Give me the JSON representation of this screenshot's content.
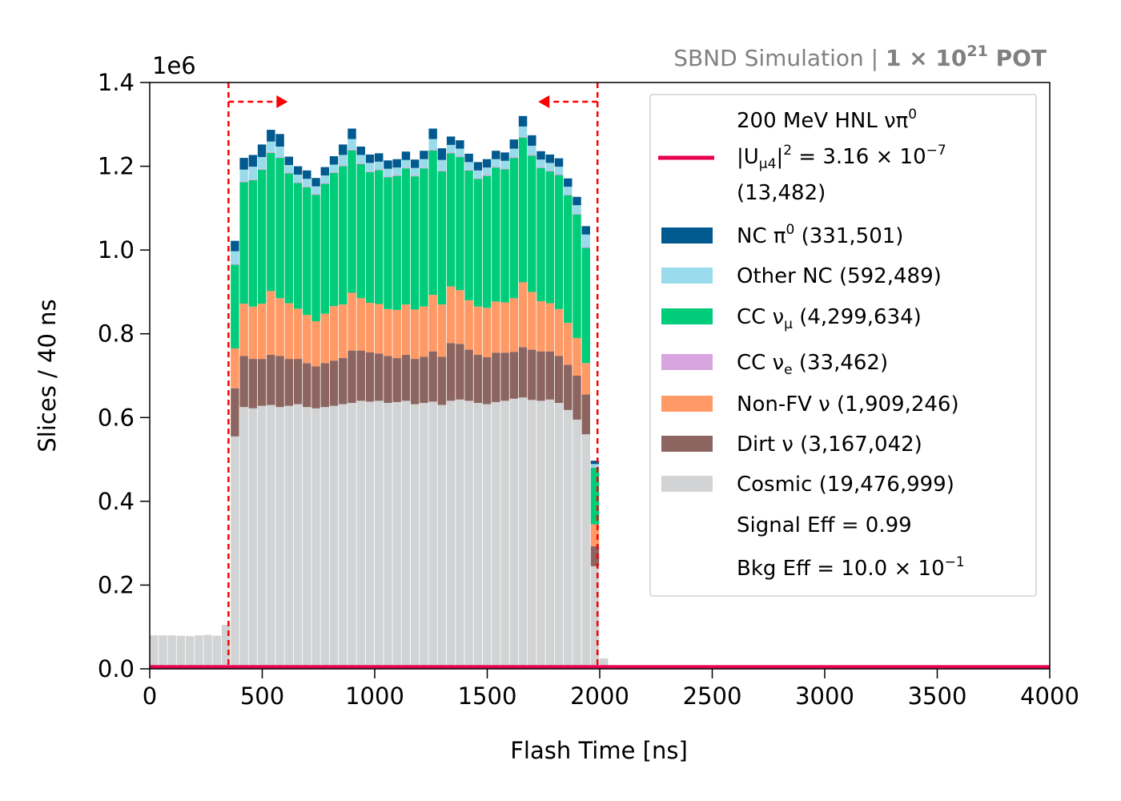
{
  "chart_data": {
    "type": "bar",
    "stacked": true,
    "header_left": "SBND Simulation | ",
    "header_bold": "1 × 10",
    "header_sup": "21",
    "header_suffix": " POT",
    "xlabel": "Flash Time [ns]",
    "ylabel": "Slices / 40 ns",
    "y_offset_text": "1e6",
    "xlim": [
      0,
      4000
    ],
    "ylim": [
      0,
      1400000
    ],
    "x_ticks": [
      0,
      500,
      1000,
      1500,
      2000,
      2500,
      3000,
      3500,
      4000
    ],
    "y_ticks": [
      0.0,
      0.2,
      0.4,
      0.6,
      0.8,
      1.0,
      1.2,
      1.4
    ],
    "y_tick_labels": [
      "0.0",
      "0.2",
      "0.4",
      "0.6",
      "0.8",
      "1.0",
      "1.2",
      "1.4"
    ],
    "x_tick_labels": [
      "0",
      "500",
      "1000",
      "1500",
      "2000",
      "2500",
      "3000",
      "3500",
      "4000"
    ],
    "bin_width": 40,
    "bin_start": 0,
    "grid": false,
    "legend_placement": "upper right",
    "cut_lines": [
      350,
      1990
    ],
    "cut_line_color": "#ff0000",
    "signal_line_color": "#e8004c",
    "signal_level": 5000,
    "legend": {
      "signal_line1": "200 MeV HNL νπ",
      "signal_line1_sup": "0",
      "signal_line2_pre": "|U",
      "signal_line2_sub": "μ4",
      "signal_line2_mid": "|",
      "signal_line2_sup": "2",
      "signal_line2_post": " = 3.16 × 10",
      "signal_line2_exp": "−7",
      "signal_line3": "(13,482)",
      "eff_signal": "Signal Eff = 0.99",
      "eff_bkg_pre": "Bkg Eff = 10.0 × 10",
      "eff_bkg_exp": "−1"
    },
    "series": [
      {
        "name": "Cosmic (19,476,999)",
        "color": "#d2d3d4",
        "values": [
          80000,
          80000,
          80000,
          79000,
          78000,
          80000,
          81000,
          79000,
          105000,
          555000,
          625000,
          622000,
          628000,
          630000,
          625000,
          628000,
          632000,
          625000,
          622000,
          625000,
          628000,
          632000,
          635000,
          640000,
          638000,
          640000,
          635000,
          637000,
          640000,
          632000,
          635000,
          638000,
          630000,
          640000,
          643000,
          640000,
          635000,
          632000,
          637000,
          640000,
          645000,
          648000,
          642000,
          640000,
          643000,
          635000,
          618000,
          595000,
          560000,
          245000,
          25000,
          0,
          0,
          0,
          0,
          0,
          0,
          0,
          0,
          0,
          0,
          0,
          0,
          0,
          0,
          0,
          0,
          0,
          0,
          0,
          0,
          0,
          0,
          0,
          0,
          0,
          0,
          0,
          0,
          0,
          0,
          0,
          0,
          0,
          0,
          0,
          0,
          0,
          0,
          0,
          0,
          0,
          0,
          0,
          0,
          0,
          0,
          0,
          0,
          0
        ]
      },
      {
        "name": "Dirt ν (3,167,042)",
        "color": "#8c6560",
        "values": [
          0,
          0,
          0,
          0,
          0,
          0,
          0,
          0,
          0,
          115000,
          122000,
          118000,
          112000,
          120000,
          122000,
          112000,
          108000,
          105000,
          100000,
          105000,
          108000,
          110000,
          125000,
          120000,
          118000,
          113000,
          112000,
          105000,
          110000,
          108000,
          110000,
          120000,
          115000,
          138000,
          133000,
          122000,
          115000,
          112000,
          118000,
          115000,
          112000,
          120000,
          120000,
          118000,
          115000,
          112000,
          108000,
          105000,
          95000,
          48000,
          0,
          0,
          0,
          0,
          0,
          0,
          0,
          0,
          0,
          0,
          0,
          0,
          0,
          0,
          0,
          0,
          0,
          0,
          0,
          0,
          0,
          0,
          0,
          0,
          0,
          0,
          0,
          0,
          0,
          0,
          0,
          0,
          0,
          0,
          0,
          0,
          0,
          0,
          0,
          0,
          0,
          0,
          0,
          0,
          0,
          0,
          0,
          0,
          0,
          0
        ]
      },
      {
        "name": "Non-FV ν (1,909,246)",
        "color": "#ff9966",
        "values": [
          0,
          0,
          0,
          0,
          0,
          0,
          0,
          0,
          0,
          95000,
          125000,
          125000,
          132000,
          152000,
          138000,
          133000,
          120000,
          115000,
          108000,
          118000,
          130000,
          128000,
          138000,
          125000,
          118000,
          118000,
          112000,
          115000,
          120000,
          118000,
          120000,
          135000,
          125000,
          135000,
          128000,
          118000,
          115000,
          118000,
          122000,
          120000,
          128000,
          155000,
          138000,
          120000,
          115000,
          112000,
          100000,
          90000,
          75000,
          52000,
          0,
          0,
          0,
          0,
          0,
          0,
          0,
          0,
          0,
          0,
          0,
          0,
          0,
          0,
          0,
          0,
          0,
          0,
          0,
          0,
          0,
          0,
          0,
          0,
          0,
          0,
          0,
          0,
          0,
          0,
          0,
          0,
          0,
          0,
          0,
          0,
          0,
          0,
          0,
          0,
          0,
          0,
          0,
          0,
          0,
          0,
          0,
          0,
          0,
          0
        ]
      },
      {
        "name": "CC νμ (4,299,634)",
        "color": "#00cc7a",
        "values": [
          0,
          0,
          0,
          0,
          0,
          0,
          0,
          0,
          0,
          200000,
          290000,
          302000,
          320000,
          330000,
          335000,
          310000,
          300000,
          305000,
          302000,
          310000,
          318000,
          330000,
          340000,
          320000,
          312000,
          320000,
          315000,
          320000,
          325000,
          318000,
          330000,
          345000,
          318000,
          318000,
          318000,
          310000,
          305000,
          315000,
          320000,
          318000,
          335000,
          345000,
          325000,
          318000,
          315000,
          320000,
          305000,
          295000,
          275000,
          135000,
          0,
          0,
          0,
          0,
          0,
          0,
          0,
          0,
          0,
          0,
          0,
          0,
          0,
          0,
          0,
          0,
          0,
          0,
          0,
          0,
          0,
          0,
          0,
          0,
          0,
          0,
          0,
          0,
          0,
          0,
          0,
          0,
          0,
          0,
          0,
          0,
          0,
          0,
          0,
          0,
          0,
          0,
          0,
          0,
          0,
          0,
          0,
          0,
          0,
          0
        ]
      },
      {
        "name": "CC νe (33,462)",
        "color": "#d9a5e0",
        "values": [
          0,
          0,
          0,
          0,
          0,
          0,
          0,
          0,
          0,
          2000,
          2000,
          2000,
          2000,
          2000,
          2000,
          2000,
          2000,
          2000,
          2000,
          2000,
          2000,
          2000,
          2000,
          2000,
          2000,
          2000,
          2000,
          2000,
          2000,
          2000,
          2000,
          2000,
          2000,
          2000,
          2000,
          2000,
          2000,
          2000,
          2000,
          2000,
          2000,
          2000,
          2000,
          2000,
          2000,
          2000,
          2000,
          2000,
          2000,
          1000,
          0,
          0,
          0,
          0,
          0,
          0,
          0,
          0,
          0,
          0,
          0,
          0,
          0,
          0,
          0,
          0,
          0,
          0,
          0,
          0,
          0,
          0,
          0,
          0,
          0,
          0,
          0,
          0,
          0,
          0,
          0,
          0,
          0,
          0,
          0,
          0,
          0,
          0,
          0,
          0,
          0,
          0,
          0,
          0,
          0,
          0,
          0,
          0,
          0,
          0
        ]
      },
      {
        "name": "Other NC (592,489)",
        "color": "#99dbea",
        "values": [
          0,
          0,
          0,
          0,
          0,
          0,
          0,
          0,
          0,
          30000,
          28000,
          30000,
          28000,
          25000,
          25000,
          18000,
          18000,
          18000,
          18000,
          18000,
          18000,
          25000,
          25000,
          20000,
          20000,
          18000,
          18000,
          18000,
          18000,
          18000,
          20000,
          25000,
          25000,
          18000,
          18000,
          18000,
          18000,
          18000,
          18000,
          18000,
          20000,
          25000,
          22000,
          18000,
          18000,
          18000,
          18000,
          20000,
          30000,
          8000,
          0,
          0,
          0,
          0,
          0,
          0,
          0,
          0,
          0,
          0,
          0,
          0,
          0,
          0,
          0,
          0,
          0,
          0,
          0,
          0,
          0,
          0,
          0,
          0,
          0,
          0,
          0,
          0,
          0,
          0,
          0,
          0,
          0,
          0,
          0,
          0,
          0,
          0,
          0,
          0,
          0,
          0,
          0,
          0,
          0,
          0,
          0,
          0,
          0,
          0
        ]
      },
      {
        "name": "NC π0 (331,501)",
        "color": "#005a8f",
        "values": [
          0,
          0,
          0,
          0,
          0,
          0,
          0,
          0,
          0,
          25000,
          28000,
          28000,
          30000,
          28000,
          30000,
          20000,
          20000,
          20000,
          20000,
          20000,
          20000,
          25000,
          25000,
          20000,
          20000,
          20000,
          20000,
          20000,
          20000,
          20000,
          20000,
          25000,
          28000,
          20000,
          20000,
          20000,
          20000,
          20000,
          20000,
          20000,
          22000,
          25000,
          25000,
          20000,
          20000,
          20000,
          20000,
          20000,
          20000,
          8000,
          0,
          0,
          0,
          0,
          0,
          0,
          0,
          0,
          0,
          0,
          0,
          0,
          0,
          0,
          0,
          0,
          0,
          0,
          0,
          0,
          0,
          0,
          0,
          0,
          0,
          0,
          0,
          0,
          0,
          0,
          0,
          0,
          0,
          0,
          0,
          0,
          0,
          0,
          0,
          0,
          0,
          0,
          0,
          0,
          0,
          0,
          0,
          0,
          0,
          0
        ]
      }
    ],
    "legend_entries": [
      {
        "label": "NC π",
        "sup": "0",
        "sub": "",
        "rest": " (331,501)",
        "color": "#005a8f"
      },
      {
        "label": "Other NC (592,489)",
        "sup": "",
        "sub": "",
        "rest": "",
        "color": "#99dbea"
      },
      {
        "label": "CC ν",
        "sup": "",
        "sub": "μ",
        "rest": " (4,299,634)",
        "color": "#00cc7a"
      },
      {
        "label": "CC ν",
        "sup": "",
        "sub": "e",
        "rest": " (33,462)",
        "color": "#d9a5e0"
      },
      {
        "label": "Non-FV ν (1,909,246)",
        "sup": "",
        "sub": "",
        "rest": "",
        "color": "#ff9966"
      },
      {
        "label": "Dirt ν (3,167,042)",
        "sup": "",
        "sub": "",
        "rest": "",
        "color": "#8c6560"
      },
      {
        "label": "Cosmic (19,476,999)",
        "sup": "",
        "sub": "",
        "rest": "",
        "color": "#d2d3d4"
      }
    ]
  }
}
